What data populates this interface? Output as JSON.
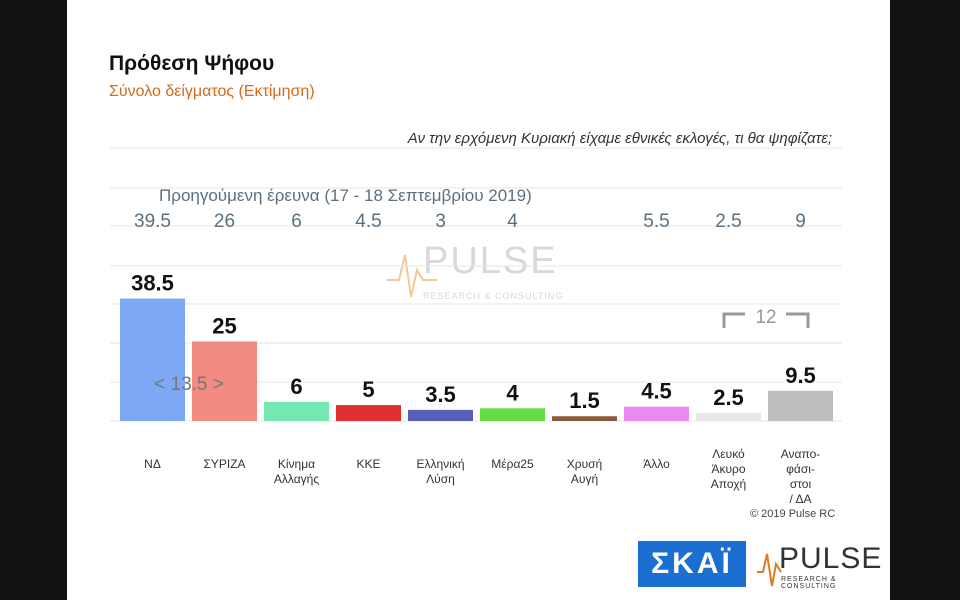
{
  "title": "Πρόθεση Ψήφου",
  "subtitle": "Σύνολο δείγματος   (Εκτίμηση)",
  "question": "Αν την ερχόμενη Κυριακή είχαμε εθνικές εκλογές, τι θα ψηφίζατε;",
  "previous_label": "Προηγούμενη έρευνα  (17 - 18  Σεπτεμβρίου  2019)",
  "copyright": "© 2019 Pulse RC",
  "watermark": {
    "word": "PULSE",
    "tagline": "RESEARCH & CONSULTING"
  },
  "logos": {
    "skai": "ΣΚΑΪ",
    "pulse": "PULSE",
    "pulse_tagline": "RESEARCH & CONSULTING"
  },
  "chart_data": {
    "type": "bar",
    "categories": [
      [
        "ΝΔ"
      ],
      [
        "ΣΥΡΙΖΑ"
      ],
      [
        "Κίνημα",
        "Αλλαγής"
      ],
      [
        "ΚΚΕ"
      ],
      [
        "Ελληνική",
        "Λύση"
      ],
      [
        "Μέρα25"
      ],
      [
        "Χρυσή",
        "Αυγή"
      ],
      [
        "Άλλο"
      ],
      [
        "Λευκό",
        "Άκυρο",
        "Αποχή"
      ],
      [
        "Αναπο-",
        "φάσι-",
        "στοι",
        "/ ΔΑ"
      ]
    ],
    "values": [
      38.5,
      25,
      6,
      5,
      3.5,
      4,
      1.5,
      4.5,
      2.5,
      9.5
    ],
    "value_labels": [
      "38.5",
      "25",
      "6",
      "5",
      "3.5",
      "4",
      "1.5",
      "4.5",
      "2.5",
      "9.5"
    ],
    "previous_values": [
      "39.5",
      "26",
      "6",
      "4.5",
      "3",
      "4",
      "",
      "5.5",
      "2.5",
      "9"
    ],
    "colors": [
      "#7ea8f3",
      "#f28b82",
      "#74e8b0",
      "#e03030",
      "#5560b8",
      "#66dd44",
      "#8b5a3c",
      "#e98af0",
      "#e8e8e8",
      "#bdbdbd"
    ],
    "gap_annotation": "< 13.5 >",
    "bracket_annotation": "12",
    "ylim": [
      0,
      45
    ],
    "grid": true
  },
  "colors": {
    "subtitle": "#d66a1a",
    "previous": "#5a7080",
    "skai": "#1a6fd0"
  }
}
